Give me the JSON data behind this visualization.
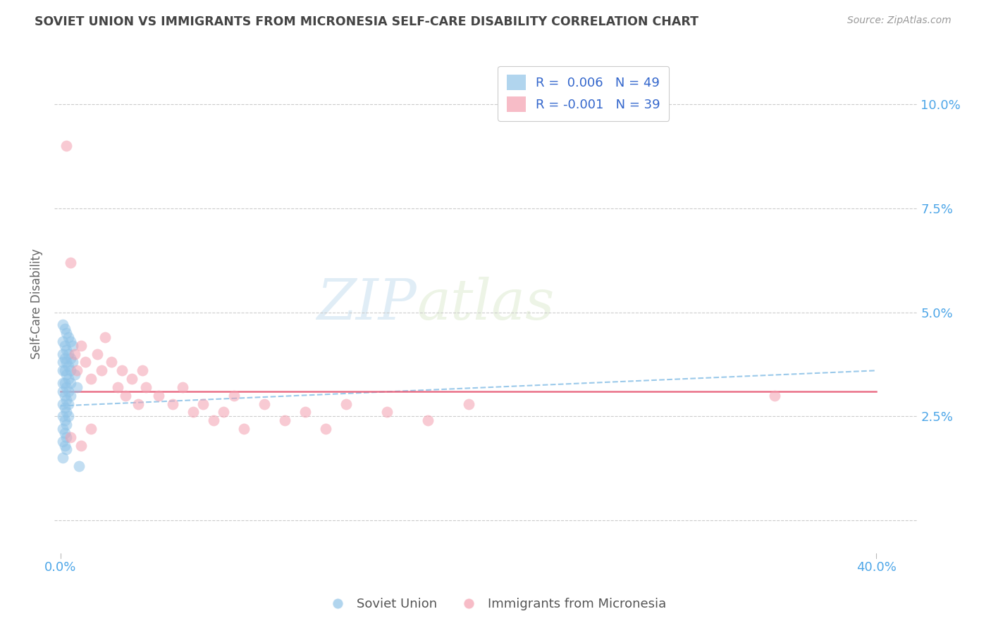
{
  "title": "SOVIET UNION VS IMMIGRANTS FROM MICRONESIA SELF-CARE DISABILITY CORRELATION CHART",
  "source": "Source: ZipAtlas.com",
  "ylabel": "Self-Care Disability",
  "xlim": [
    -0.003,
    0.42
  ],
  "ylim": [
    -0.008,
    0.112
  ],
  "watermark_zip": "ZIP",
  "watermark_atlas": "atlas",
  "legend_R1": "R =  0.006",
  "legend_N1": "N = 49",
  "legend_R2": "R = -0.001",
  "legend_N2": "N = 39",
  "blue_color": "#90c4e8",
  "pink_color": "#f4a0b0",
  "title_color": "#444444",
  "source_color": "#999999",
  "axis_label_color": "#4da6e8",
  "soviet_x": [
    0.001,
    0.001,
    0.001,
    0.001,
    0.001,
    0.001,
    0.001,
    0.001,
    0.001,
    0.001,
    0.001,
    0.001,
    0.002,
    0.002,
    0.002,
    0.002,
    0.002,
    0.002,
    0.002,
    0.002,
    0.002,
    0.002,
    0.003,
    0.003,
    0.003,
    0.003,
    0.003,
    0.003,
    0.003,
    0.003,
    0.003,
    0.003,
    0.004,
    0.004,
    0.004,
    0.004,
    0.004,
    0.004,
    0.004,
    0.005,
    0.005,
    0.005,
    0.005,
    0.005,
    0.006,
    0.006,
    0.007,
    0.008,
    0.009
  ],
  "soviet_y": [
    0.047,
    0.043,
    0.04,
    0.038,
    0.036,
    0.033,
    0.031,
    0.028,
    0.025,
    0.022,
    0.019,
    0.015,
    0.046,
    0.042,
    0.039,
    0.036,
    0.033,
    0.03,
    0.027,
    0.024,
    0.021,
    0.018,
    0.045,
    0.041,
    0.038,
    0.035,
    0.032,
    0.029,
    0.026,
    0.023,
    0.02,
    0.017,
    0.044,
    0.04,
    0.037,
    0.034,
    0.031,
    0.028,
    0.025,
    0.043,
    0.039,
    0.036,
    0.033,
    0.03,
    0.042,
    0.038,
    0.035,
    0.032,
    0.013
  ],
  "micronesia_x": [
    0.003,
    0.005,
    0.007,
    0.008,
    0.01,
    0.012,
    0.015,
    0.018,
    0.02,
    0.022,
    0.025,
    0.028,
    0.03,
    0.032,
    0.035,
    0.038,
    0.04,
    0.042,
    0.048,
    0.055,
    0.06,
    0.065,
    0.07,
    0.075,
    0.08,
    0.085,
    0.09,
    0.1,
    0.11,
    0.12,
    0.13,
    0.14,
    0.16,
    0.18,
    0.2,
    0.35,
    0.005,
    0.01,
    0.015
  ],
  "micronesia_y": [
    0.09,
    0.062,
    0.04,
    0.036,
    0.042,
    0.038,
    0.034,
    0.04,
    0.036,
    0.044,
    0.038,
    0.032,
    0.036,
    0.03,
    0.034,
    0.028,
    0.036,
    0.032,
    0.03,
    0.028,
    0.032,
    0.026,
    0.028,
    0.024,
    0.026,
    0.03,
    0.022,
    0.028,
    0.024,
    0.026,
    0.022,
    0.028,
    0.026,
    0.024,
    0.028,
    0.03,
    0.02,
    0.018,
    0.022
  ],
  "blue_trendline_start_y": 0.0275,
  "blue_trendline_end_y": 0.036,
  "pink_trendline_y": 0.031,
  "ytick_vals": [
    0.0,
    0.025,
    0.05,
    0.075,
    0.1
  ],
  "ytick_labels": [
    "",
    "2.5%",
    "5.0%",
    "7.5%",
    "10.0%"
  ]
}
